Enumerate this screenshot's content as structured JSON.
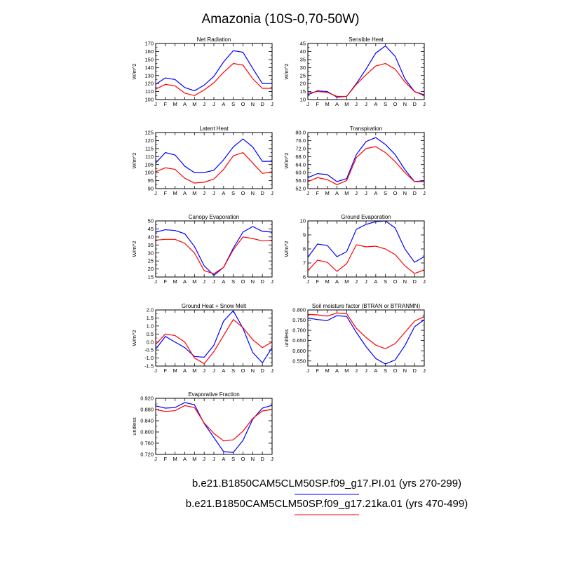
{
  "figure": {
    "title": "Amazonia (10S-0,70-50W)",
    "months": [
      "J",
      "F",
      "M",
      "A",
      "M",
      "J",
      "J",
      "A",
      "S",
      "O",
      "N",
      "D",
      "J"
    ],
    "legend": [
      {
        "label": "b.e21.B1850CAM5CLM50SP.f09_g17.PI.01 (yrs 270-299)",
        "color": "#0000ff"
      },
      {
        "label": "b.e21.B1850CAM5CLM50SP.f09_g17.21ka.01 (yrs 470-499)",
        "color": "#ff0000"
      }
    ]
  },
  "chart_data": [
    {
      "type": "line",
      "title": "Net Radiation",
      "ylabel": "W/m^2",
      "ylim": [
        100,
        170
      ],
      "yticks": [
        "100",
        "110",
        "120",
        "130",
        "140",
        "150",
        "160",
        "170"
      ],
      "series": [
        {
          "color": "#0000ff",
          "values": [
            119,
            127,
            125,
            115,
            111,
            118,
            129,
            147,
            161,
            159,
            139,
            120,
            120
          ]
        },
        {
          "color": "#ff0000",
          "values": [
            113,
            119,
            117,
            108,
            105,
            112,
            121,
            134,
            145,
            143,
            126,
            114,
            114
          ]
        }
      ]
    },
    {
      "type": "line",
      "title": "Sensible Heat",
      "ylabel": "W/m^2",
      "ylim": [
        10,
        45
      ],
      "yticks": [
        "10",
        "15",
        "20",
        "25",
        "30",
        "35",
        "40",
        "45"
      ],
      "series": [
        {
          "color": "#0000ff",
          "values": [
            13,
            15.5,
            15,
            11.5,
            12,
            20,
            29,
            39,
            43.5,
            37,
            23,
            15,
            13
          ]
        },
        {
          "color": "#ff0000",
          "values": [
            14,
            15,
            14.5,
            12,
            12,
            19.5,
            25.5,
            31,
            32.5,
            29,
            21,
            15,
            12.5
          ]
        }
      ]
    },
    {
      "type": "line",
      "title": "Latent Heat",
      "ylabel": "W/m^2",
      "ylim": [
        90,
        125
      ],
      "yticks": [
        "90",
        "95",
        "100",
        "105",
        "110",
        "115",
        "120",
        "125"
      ],
      "series": [
        {
          "color": "#0000ff",
          "values": [
            106,
            112.5,
            111,
            104,
            100,
            100,
            101.5,
            108,
            116,
            121,
            116,
            107,
            107
          ]
        },
        {
          "color": "#ff0000",
          "values": [
            100.5,
            103,
            102,
            96.5,
            93.5,
            94,
            96,
            102,
            110.5,
            112.5,
            106,
            99.5,
            100.5
          ]
        }
      ]
    },
    {
      "type": "line",
      "title": "Transpiration",
      "ylabel": "W/m^2",
      "ylim": [
        52,
        80
      ],
      "yticks": [
        "52.0",
        "56.0",
        "60.0",
        "64.0",
        "68.0",
        "72.0",
        "76.0",
        "80.0"
      ],
      "series": [
        {
          "color": "#0000ff",
          "values": [
            57.5,
            59.5,
            59,
            55.5,
            57,
            69,
            75.5,
            77.5,
            74,
            69,
            61.5,
            55.5,
            56
          ]
        },
        {
          "color": "#ff0000",
          "values": [
            55.5,
            57.5,
            56.5,
            54,
            56,
            67.5,
            72,
            73,
            70,
            65.5,
            60,
            55.5,
            55.5
          ]
        }
      ]
    },
    {
      "type": "line",
      "title": "Canopy Evaporation",
      "ylabel": "W/m^2",
      "ylim": [
        15,
        50
      ],
      "yticks": [
        "15",
        "20",
        "25",
        "30",
        "35",
        "40",
        "45",
        "50"
      ],
      "series": [
        {
          "color": "#0000ff",
          "values": [
            43,
            44.5,
            44,
            42,
            34,
            22,
            16,
            21,
            33,
            43,
            46.5,
            43.5,
            43
          ]
        },
        {
          "color": "#ff0000",
          "values": [
            38,
            38.5,
            38.5,
            36,
            30,
            19,
            17,
            21,
            32,
            40,
            39,
            37.5,
            38
          ]
        }
      ]
    },
    {
      "type": "line",
      "title": "Ground Evaporation",
      "ylabel": "W/m^2",
      "ylim": [
        6,
        10
      ],
      "yticks": [
        "6",
        "7",
        "8",
        "9",
        "10"
      ],
      "series": [
        {
          "color": "#0000ff",
          "values": [
            7.4,
            8.35,
            8.25,
            7.45,
            7.8,
            9.4,
            9.75,
            9.95,
            10,
            9.5,
            8,
            7.05,
            7.45
          ]
        },
        {
          "color": "#ff0000",
          "values": [
            6.45,
            7.2,
            7.05,
            6.4,
            6.95,
            8.3,
            8.15,
            8.2,
            8,
            7.6,
            6.8,
            6.25,
            6.5
          ]
        }
      ]
    },
    {
      "type": "line",
      "title": "Ground Heat + Snow Melt",
      "ylabel": "W/m^2",
      "ylim": [
        -1.5,
        2.0
      ],
      "yticks": [
        "-1.5",
        "-1.0",
        "-0.5",
        "0.0",
        "0.5",
        "1.0",
        "1.5",
        "2.0"
      ],
      "series": [
        {
          "color": "#0000ff",
          "values": [
            -0.45,
            0.35,
            0,
            -0.35,
            -0.9,
            -0.95,
            -0.2,
            1.3,
            1.95,
            0.85,
            -0.65,
            -1.3,
            -0.35
          ]
        },
        {
          "color": "#ff0000",
          "values": [
            -0.15,
            0.5,
            0.4,
            0,
            -1.0,
            -1.35,
            -0.6,
            0.4,
            1.4,
            0.9,
            0.15,
            -0.35,
            0
          ]
        }
      ]
    },
    {
      "type": "line",
      "title": "Soil moisture factor (BTRAN or BTRANMN)",
      "ylabel": "unitless",
      "ylim": [
        0.525,
        0.8
      ],
      "yticks": [
        "0.550",
        "0.600",
        "0.650",
        "0.700",
        "0.750",
        "0.800"
      ],
      "series": [
        {
          "color": "#0000ff",
          "values": [
            0.76,
            0.753,
            0.748,
            0.772,
            0.768,
            0.69,
            0.62,
            0.562,
            0.535,
            0.555,
            0.625,
            0.718,
            0.752
          ]
        },
        {
          "color": "#ff0000",
          "values": [
            0.778,
            0.776,
            0.77,
            0.785,
            0.782,
            0.71,
            0.665,
            0.628,
            0.61,
            0.635,
            0.69,
            0.745,
            0.768
          ]
        }
      ]
    },
    {
      "type": "line",
      "title": "Evaporative Fraction",
      "ylabel": "unitless",
      "ylim": [
        0.72,
        0.92
      ],
      "yticks": [
        "0.720",
        "0.760",
        "0.800",
        "0.840",
        "0.880",
        "0.920"
      ],
      "series": [
        {
          "color": "#0000ff",
          "values": [
            0.893,
            0.885,
            0.887,
            0.905,
            0.897,
            0.83,
            0.78,
            0.73,
            0.727,
            0.77,
            0.845,
            0.885,
            0.895
          ]
        },
        {
          "color": "#ff0000",
          "values": [
            0.88,
            0.873,
            0.876,
            0.894,
            0.887,
            0.832,
            0.795,
            0.768,
            0.772,
            0.803,
            0.848,
            0.875,
            0.88
          ]
        }
      ]
    }
  ]
}
